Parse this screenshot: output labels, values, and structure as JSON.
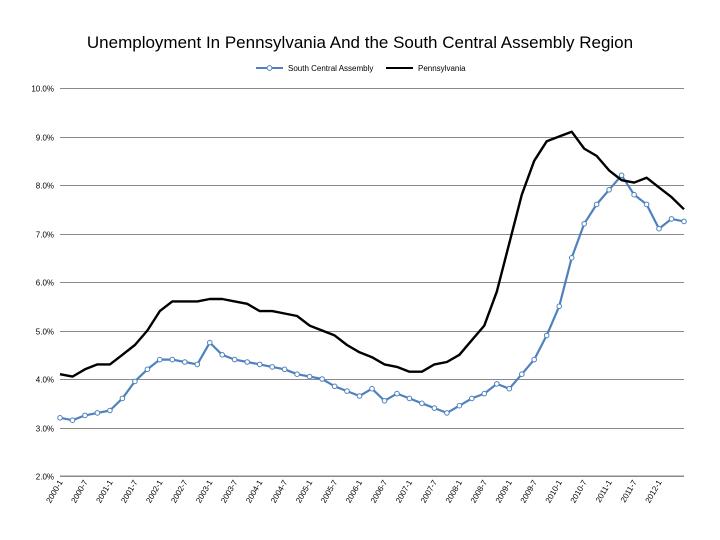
{
  "chart_data": {
    "type": "line",
    "title": "Unemployment In Pennsylvania And the South Central Assembly Region",
    "xlabel": "",
    "ylabel": "",
    "ylim": [
      2.0,
      10.0
    ],
    "y_ticks": [
      "2.0%",
      "3.0%",
      "4.0%",
      "5.0%",
      "6.0%",
      "7.0%",
      "8.0%",
      "9.0%",
      "10.0%"
    ],
    "y_tick_values": [
      2,
      3,
      4,
      5,
      6,
      7,
      8,
      9,
      10
    ],
    "grid": true,
    "legend_position": "top-center",
    "x_tick_labels": [
      "2000-1",
      "2000-7",
      "2001-1",
      "2001-7",
      "2002-1",
      "2002-7",
      "2003-1",
      "2003-7",
      "2004-1",
      "2004-7",
      "2005-1",
      "2005-7",
      "2006-1",
      "2006-7",
      "2007-1",
      "2007-7",
      "2008-1",
      "2008-7",
      "2009-1",
      "2009-7",
      "2010-1",
      "2010-7",
      "2011-1",
      "2011-7",
      "2012-1"
    ],
    "x": [
      0,
      3,
      6,
      9,
      12,
      15,
      18,
      21,
      24,
      27,
      30,
      33,
      36,
      39,
      42,
      45,
      48,
      51,
      54,
      57,
      60,
      63,
      66,
      69,
      72,
      75,
      78,
      81,
      84,
      87,
      90,
      93,
      96,
      99,
      102,
      105,
      108,
      111,
      114,
      117,
      120,
      123,
      126,
      129,
      132,
      135,
      138,
      141,
      144,
      147,
      150
    ],
    "x_unit": "months since 2000-1",
    "series": [
      {
        "name": "South Central Assembly",
        "color": "#4f81bd",
        "marker": "circle",
        "values": [
          3.2,
          3.15,
          3.25,
          3.3,
          3.35,
          3.6,
          3.95,
          4.2,
          4.4,
          4.4,
          4.35,
          4.3,
          4.75,
          4.5,
          4.4,
          4.35,
          4.3,
          4.25,
          4.2,
          4.1,
          4.05,
          4.0,
          3.85,
          3.75,
          3.65,
          3.8,
          3.55,
          3.7,
          3.6,
          3.5,
          3.4,
          3.3,
          3.45,
          3.6,
          3.7,
          3.9,
          3.8,
          4.1,
          4.4,
          4.9,
          5.5,
          6.5,
          7.2,
          7.6,
          7.9,
          8.2,
          7.8,
          7.6,
          7.1,
          7.3,
          7.25
        ]
      },
      {
        "name": "Pennsylvania",
        "color": "#000000",
        "marker": "none",
        "values": [
          4.1,
          4.05,
          4.2,
          4.3,
          4.3,
          4.5,
          4.7,
          5.0,
          5.4,
          5.6,
          5.6,
          5.6,
          5.65,
          5.65,
          5.6,
          5.55,
          5.4,
          5.4,
          5.35,
          5.3,
          5.1,
          5.0,
          4.9,
          4.7,
          4.55,
          4.45,
          4.3,
          4.25,
          4.15,
          4.15,
          4.3,
          4.35,
          4.5,
          4.8,
          5.1,
          5.8,
          6.8,
          7.8,
          8.5,
          8.9,
          9.0,
          9.1,
          8.75,
          8.6,
          8.3,
          8.1,
          8.05,
          8.15,
          7.95,
          7.75,
          7.5
        ]
      }
    ]
  }
}
